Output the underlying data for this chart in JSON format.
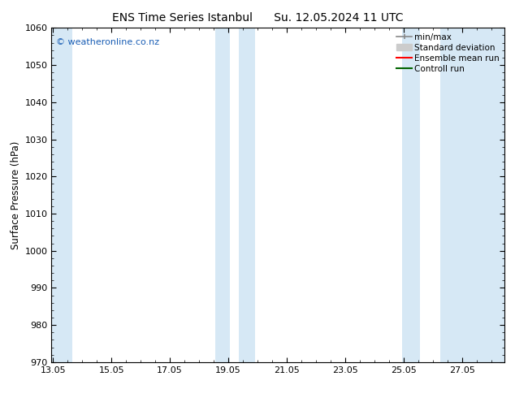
{
  "title_left": "ENS Time Series Istanbul",
  "title_right": "Su. 12.05.2024 11 UTC",
  "ylabel": "Surface Pressure (hPa)",
  "ylim": [
    970,
    1060
  ],
  "yticks": [
    970,
    980,
    990,
    1000,
    1010,
    1020,
    1030,
    1040,
    1050,
    1060
  ],
  "xlim_start": 13.0,
  "xlim_end": 28.5,
  "xtick_labels": [
    "13.05",
    "15.05",
    "17.05",
    "19.05",
    "21.05",
    "23.05",
    "25.05",
    "27.05"
  ],
  "xtick_positions": [
    13.05,
    15.05,
    17.05,
    19.05,
    21.05,
    23.05,
    25.05,
    27.05
  ],
  "shaded_bands": [
    {
      "x_start": 13.0,
      "x_end": 13.7
    },
    {
      "x_start": 18.6,
      "x_end": 19.1
    },
    {
      "x_start": 19.4,
      "x_end": 19.95
    },
    {
      "x_start": 25.0,
      "x_end": 25.6
    },
    {
      "x_start": 26.3,
      "x_end": 28.5
    }
  ],
  "shade_color": "#d6e8f5",
  "watermark_text": "© weatheronline.co.nz",
  "watermark_color": "#1a5eb5",
  "bg_color": "#ffffff",
  "plot_bg_color": "#ffffff",
  "title_fontsize": 10,
  "label_fontsize": 8.5,
  "tick_fontsize": 8,
  "legend_fontsize": 7.5
}
